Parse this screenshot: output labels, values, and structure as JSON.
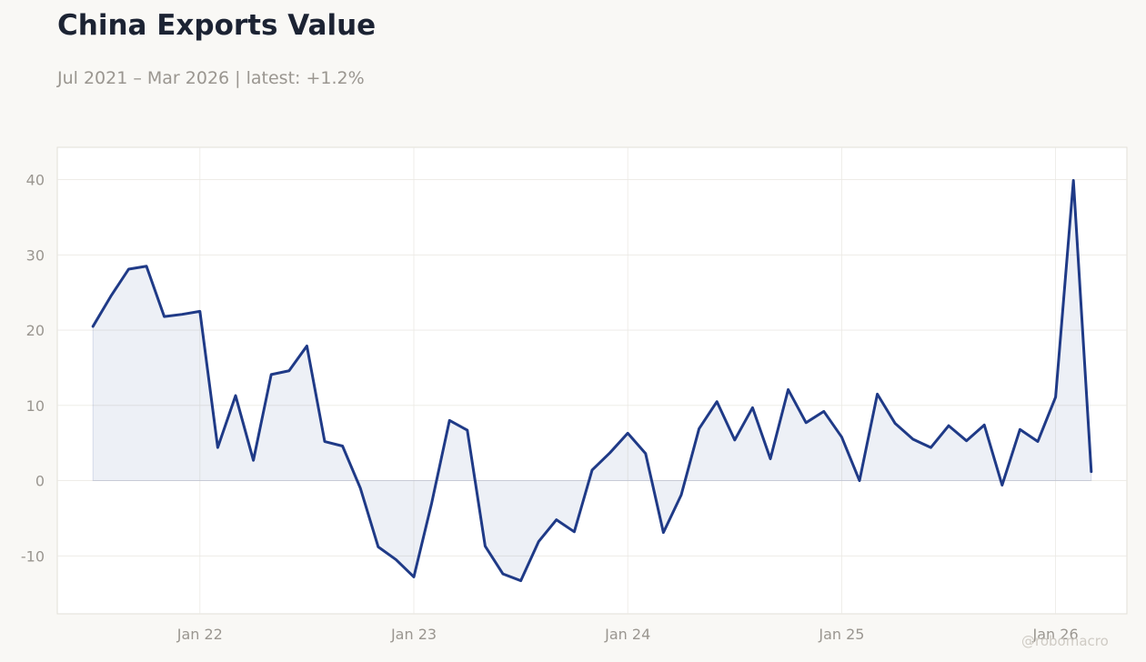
{
  "header": {
    "title": "China Exports Value",
    "subtitle": "Jul 2021 – Mar 2026 | latest: +1.2%"
  },
  "watermark": "@robomacro",
  "colors": {
    "line": "#1f3a87",
    "fill": "#1f3a87",
    "background": "#f9f8f5",
    "plot_background": "#ffffff",
    "grid": "#ebe9e4",
    "frame": "#e2dfd8"
  },
  "chart_data": {
    "type": "area",
    "title": "China Exports Value",
    "subtitle": "Jul 2021 – Mar 2026 | latest: +1.2%",
    "xlabel": "",
    "ylabel": "",
    "grid": true,
    "legend": "none",
    "x_ticks": [
      "Jan 22",
      "Jan 23",
      "Jan 24",
      "Jan 25",
      "Jan 26"
    ],
    "y_ticks": [
      -10,
      0,
      10,
      20,
      30,
      40
    ],
    "ylim": [
      -17.7,
      44.3
    ],
    "xlim": [
      "2021-05",
      "2026-05"
    ],
    "series": [
      {
        "x": [
          "2021-07",
          "2021-08",
          "2021-09",
          "2021-10",
          "2021-11",
          "2021-12",
          "2022-01",
          "2022-02",
          "2022-03",
          "2022-04",
          "2022-05",
          "2022-06",
          "2022-07",
          "2022-08",
          "2022-09",
          "2022-10",
          "2022-11",
          "2022-12",
          "2023-01",
          "2023-02",
          "2023-03",
          "2023-04",
          "2023-05",
          "2023-06",
          "2023-07",
          "2023-08",
          "2023-09",
          "2023-10",
          "2023-11",
          "2023-12",
          "2024-01",
          "2024-02",
          "2024-03",
          "2024-04",
          "2024-05",
          "2024-06",
          "2024-07",
          "2024-08",
          "2024-09",
          "2024-10",
          "2024-11",
          "2024-12",
          "2025-01",
          "2025-02",
          "2025-03",
          "2025-04",
          "2025-05",
          "2025-06",
          "2025-07",
          "2025-08",
          "2025-09",
          "2025-10",
          "2025-11",
          "2025-12",
          "2026-01",
          "2026-02",
          "2026-03"
        ],
        "values": [
          20.5,
          24.5,
          28.1,
          28.5,
          21.8,
          22.1,
          22.5,
          4.4,
          11.3,
          2.7,
          14.1,
          14.6,
          17.9,
          5.2,
          4.6,
          -1.0,
          -8.8,
          -10.5,
          -12.8,
          -3.0,
          8.0,
          6.7,
          -8.7,
          -12.4,
          -13.3,
          -8.1,
          -5.2,
          -6.8,
          1.4,
          3.7,
          6.3,
          3.6,
          -6.9,
          -1.9,
          6.9,
          10.5,
          5.4,
          9.7,
          2.9,
          12.1,
          7.7,
          9.2,
          5.8,
          0.0,
          11.5,
          7.6,
          5.5,
          4.4,
          7.3,
          5.3,
          7.4,
          -0.6,
          6.8,
          5.2,
          11.1,
          39.9,
          1.2
        ]
      }
    ]
  }
}
